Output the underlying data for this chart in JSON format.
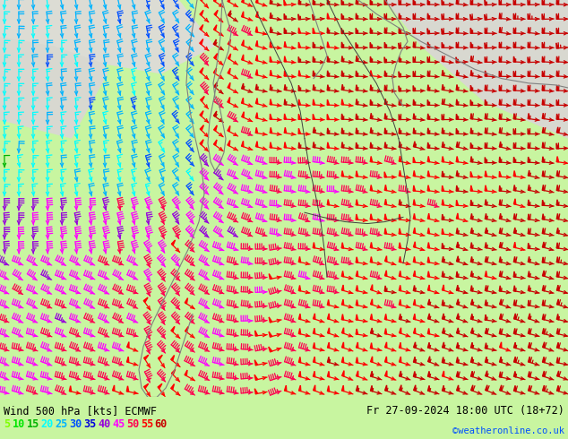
{
  "title_left": "Wind 500 hPa [kts] ECMWF",
  "title_right": "Fr 27-09-2024 18:00 UTC (18+72)",
  "credit": "©weatheronline.co.uk",
  "figsize": [
    6.34,
    4.9
  ],
  "dpi": 100,
  "bg_color": "#c8f5a0",
  "legend_values": [
    5,
    10,
    15,
    20,
    25,
    30,
    35,
    40,
    45,
    50,
    55,
    60
  ],
  "legend_colors": [
    "#80ff00",
    "#00e600",
    "#00b400",
    "#00ffff",
    "#00b4ff",
    "#0050ff",
    "#0000dc",
    "#9600dc",
    "#ff00ff",
    "#ff0050",
    "#ff0000",
    "#c80000"
  ],
  "bottom_bg": "#c8f5a0",
  "credit_color": "#0050ff"
}
